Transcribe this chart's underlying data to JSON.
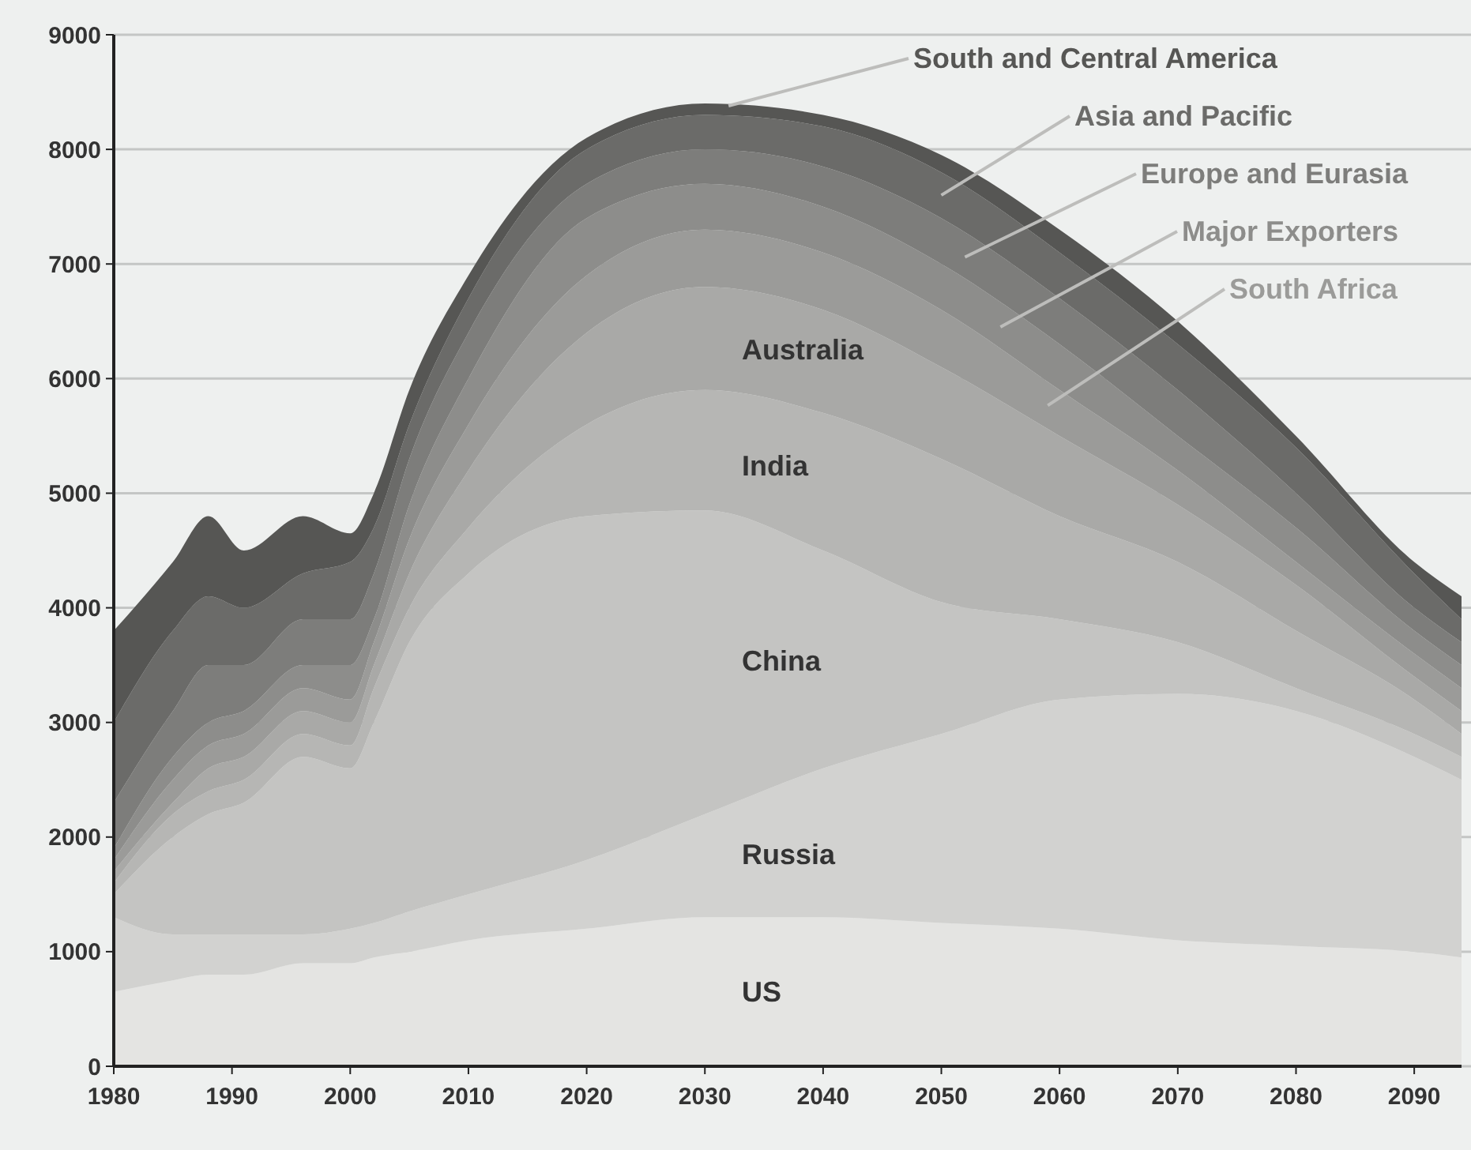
{
  "chart_data": {
    "type": "area",
    "stacked": true,
    "x": [
      1980,
      1985,
      1988,
      1991,
      1996,
      2000,
      2002,
      2005,
      2010,
      2020,
      2030,
      2040,
      2050,
      2060,
      2070,
      2080,
      2090,
      2094
    ],
    "xlim": [
      1980,
      2094
    ],
    "xticks": [
      1980,
      1990,
      2000,
      2010,
      2020,
      2030,
      2040,
      2050,
      2060,
      2070,
      2080,
      2090
    ],
    "ylim": [
      0,
      9000
    ],
    "yticks": [
      0,
      1000,
      2000,
      3000,
      4000,
      5000,
      6000,
      7000,
      8000,
      9000
    ],
    "grid": "y",
    "series": [
      {
        "name": "US",
        "color": "#e4e4e2",
        "values": [
          650,
          750,
          800,
          800,
          900,
          900,
          950,
          1000,
          1100,
          1200,
          1300,
          1300,
          1250,
          1200,
          1100,
          1050,
          1000,
          950
        ]
      },
      {
        "name": "Russia",
        "color": "#d2d2d0",
        "values": [
          650,
          400,
          350,
          350,
          250,
          300,
          300,
          350,
          400,
          600,
          900,
          1300,
          1650,
          2000,
          2150,
          2050,
          1700,
          1550
        ]
      },
      {
        "name": "China",
        "color": "#c4c4c2",
        "values": [
          200,
          850,
          1050,
          1150,
          1550,
          1400,
          1750,
          2350,
          2800,
          3000,
          2650,
          1900,
          1150,
          700,
          450,
          200,
          200,
          200
        ]
      },
      {
        "name": "India",
        "color": "#b6b6b4",
        "values": [
          100,
          200,
          200,
          200,
          200,
          200,
          300,
          300,
          400,
          800,
          1050,
          1200,
          1250,
          900,
          700,
          500,
          300,
          200
        ]
      },
      {
        "name": "Australia",
        "color": "#a9a9a7",
        "values": [
          100,
          100,
          200,
          200,
          200,
          200,
          200,
          300,
          500,
          800,
          900,
          900,
          800,
          700,
          500,
          400,
          200,
          200
        ]
      },
      {
        "name": "South Africa",
        "color": "#9b9b99",
        "values": [
          100,
          200,
          200,
          200,
          200,
          200,
          200,
          300,
          400,
          500,
          500,
          500,
          500,
          400,
          300,
          200,
          200,
          200
        ]
      },
      {
        "name": "Major Exporters",
        "color": "#8d8d8b",
        "values": [
          100,
          200,
          200,
          200,
          200,
          300,
          200,
          300,
          400,
          500,
          400,
          400,
          400,
          400,
          300,
          300,
          200,
          200
        ]
      },
      {
        "name": "Europe and Eurasia",
        "color": "#7d7d7b",
        "values": [
          400,
          400,
          500,
          400,
          400,
          400,
          400,
          400,
          400,
          300,
          300,
          350,
          400,
          400,
          400,
          300,
          200,
          200
        ]
      },
      {
        "name": "Asia and Pacific",
        "color": "#6b6b69",
        "values": [
          700,
          700,
          600,
          500,
          400,
          500,
          400,
          300,
          300,
          300,
          300,
          350,
          400,
          400,
          400,
          400,
          300,
          200
        ]
      },
      {
        "name": "South and Central America",
        "color": "#565654",
        "values": [
          800,
          600,
          700,
          500,
          500,
          250,
          300,
          300,
          200,
          100,
          100,
          100,
          150,
          200,
          200,
          100,
          100,
          200
        ]
      }
    ]
  }
}
